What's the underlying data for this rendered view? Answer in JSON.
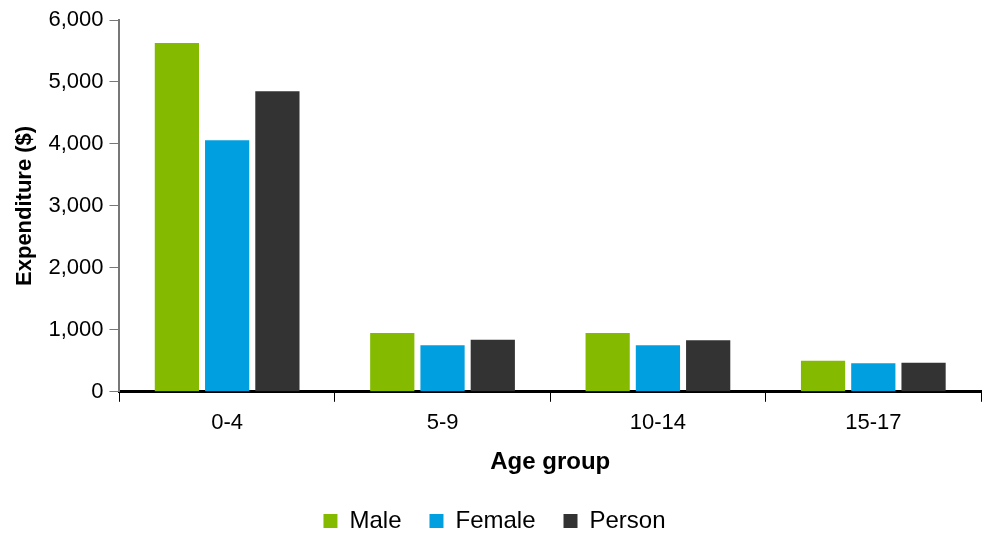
{
  "chart_data": {
    "type": "bar",
    "xlabel": "Age group",
    "ylabel": "Expenditure ($)",
    "categories": [
      "0-4",
      "5-9",
      "10-14",
      "15-17"
    ],
    "series": [
      {
        "name": "Male",
        "color": "#84bb00",
        "values": [
          5630,
          950,
          950,
          500
        ]
      },
      {
        "name": "Female",
        "color": "#009fdf",
        "values": [
          4060,
          750,
          750,
          460
        ]
      },
      {
        "name": "Person",
        "color": "#333333",
        "values": [
          4850,
          840,
          830,
          470
        ]
      }
    ],
    "ylim": [
      0,
      6000
    ],
    "yticks": [
      {
        "value": 0,
        "label": "0"
      },
      {
        "value": 1000,
        "label": "1,000"
      },
      {
        "value": 2000,
        "label": "2,000"
      },
      {
        "value": 3000,
        "label": "3,000"
      },
      {
        "value": 4000,
        "label": "4,000"
      },
      {
        "value": 5000,
        "label": "5,000"
      },
      {
        "value": 6000,
        "label": "6,000"
      }
    ],
    "grid": false,
    "legend": "bottom"
  }
}
